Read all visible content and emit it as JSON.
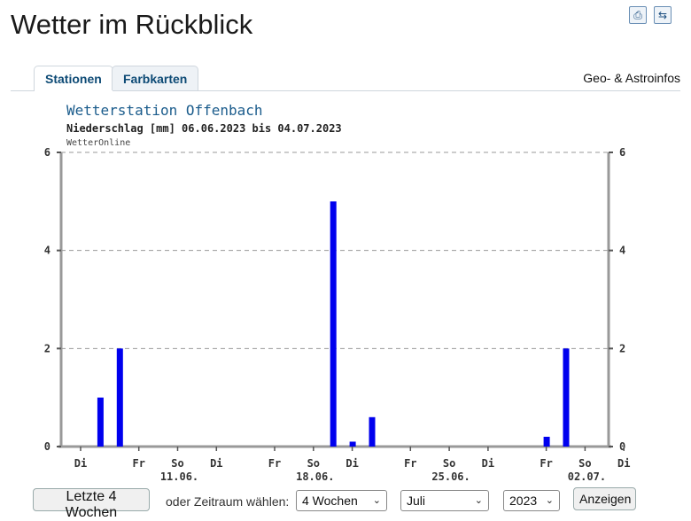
{
  "page": {
    "title": "Wetter im Rückblick"
  },
  "icons": {
    "print": "printer-icon",
    "swap": "swap-icon"
  },
  "tabs": [
    {
      "label": "Stationen",
      "active": true
    },
    {
      "label": "Farbkarten",
      "active": false
    }
  ],
  "geo_link": "Geo- & Astroinfos",
  "chart_data": {
    "type": "bar",
    "title": "Wetterstation Offenbach",
    "subtitle": "Niederschlag [mm] 06.06.2023 bis 04.07.2023",
    "source": "WetterOnline",
    "ylim": [
      0,
      6
    ],
    "yticks": [
      0,
      2,
      4,
      6
    ],
    "grid": true,
    "bar_color": "#0000ee",
    "dates": [
      "06.06.",
      "07.06.",
      "08.06.",
      "09.06.",
      "10.06.",
      "11.06.",
      "12.06.",
      "13.06.",
      "14.06.",
      "15.06.",
      "16.06.",
      "17.06.",
      "18.06.",
      "19.06.",
      "20.06.",
      "21.06.",
      "22.06.",
      "23.06.",
      "24.06.",
      "25.06.",
      "26.06.",
      "27.06.",
      "28.06.",
      "29.06.",
      "30.06.",
      "01.07.",
      "02.07.",
      "03.07.",
      "04.07."
    ],
    "values": [
      0,
      1,
      2,
      0,
      0,
      0,
      0,
      0,
      0,
      0,
      0,
      0,
      0,
      5,
      0.1,
      0.6,
      0,
      0,
      0,
      0,
      0,
      0,
      0,
      0,
      0.2,
      2,
      0,
      0,
      0
    ],
    "weekday_labels": [
      {
        "date": "06.06.",
        "label": "Di"
      },
      {
        "date": "09.06.",
        "label": "Fr"
      },
      {
        "date": "11.06.",
        "label": "So"
      },
      {
        "date": "13.06.",
        "label": "Di"
      },
      {
        "date": "16.06.",
        "label": "Fr"
      },
      {
        "date": "18.06.",
        "label": "So"
      },
      {
        "date": "20.06.",
        "label": "Di"
      },
      {
        "date": "23.06.",
        "label": "Fr"
      },
      {
        "date": "25.06.",
        "label": "So"
      },
      {
        "date": "27.06.",
        "label": "Di"
      },
      {
        "date": "30.06.",
        "label": "Fr"
      },
      {
        "date": "02.07.",
        "label": "So"
      },
      {
        "date": "04.07.",
        "label": "Di"
      }
    ],
    "date_labels": [
      {
        "date": "11.06.",
        "label": "11.06."
      },
      {
        "date": "18.06.",
        "label": "18.06."
      },
      {
        "date": "25.06.",
        "label": "25.06."
      },
      {
        "date": "02.07.",
        "label": "02.07."
      }
    ]
  },
  "controls": {
    "last4_button": "Letzte 4 Wochen",
    "period_label": "oder Zeitraum wählen:",
    "duration_value": "4 Wochen",
    "month_value": "Juli",
    "year_value": "2023",
    "show_button": "Anzeigen"
  }
}
